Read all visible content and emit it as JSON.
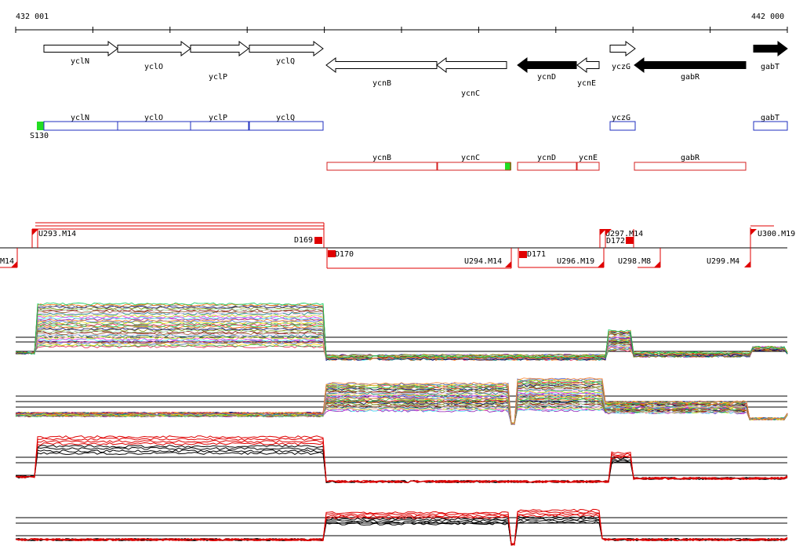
{
  "ruler": {
    "start_label": "432 001",
    "end_label": "442 000"
  },
  "genes": [
    {
      "name": "yclN",
      "strand": "+",
      "fill": "white"
    },
    {
      "name": "yclO",
      "strand": "+",
      "fill": "white"
    },
    {
      "name": "yclP",
      "strand": "+",
      "fill": "white"
    },
    {
      "name": "yclQ",
      "strand": "+",
      "fill": "white"
    },
    {
      "name": "ycnB",
      "strand": "-",
      "fill": "white"
    },
    {
      "name": "ycnC",
      "strand": "-",
      "fill": "white"
    },
    {
      "name": "ycnD",
      "strand": "-",
      "fill": "black"
    },
    {
      "name": "ycnE",
      "strand": "-",
      "fill": "white"
    },
    {
      "name": "yczG",
      "strand": "+",
      "fill": "white"
    },
    {
      "name": "gabR",
      "strand": "-",
      "fill": "black"
    },
    {
      "name": "gabT",
      "strand": "+",
      "fill": "black"
    }
  ],
  "operon_plus": {
    "color": "#1f2fbf",
    "promoter_label": "S130",
    "boxes": [
      "yclN",
      "yclO",
      "yclP",
      "yclQ",
      "yczG",
      "gabT"
    ]
  },
  "operon_minus": {
    "color": "#d42020",
    "boxes": [
      "ycnB",
      "ycnC",
      "ycnD",
      "ycnE",
      "gabR"
    ]
  },
  "segments": {
    "upper_labels": [
      "U293.M14",
      "D169",
      "U297.M14",
      "D172",
      "U300.M19"
    ],
    "lower_labels": [
      "M14",
      "D170",
      "U294.M14",
      "D171",
      "U296.M19",
      "U298.M8",
      "U299.M4"
    ]
  },
  "colors": {
    "accent_red": "#e00000",
    "green": "#22dd22",
    "blue": "#1f2fbf"
  }
}
